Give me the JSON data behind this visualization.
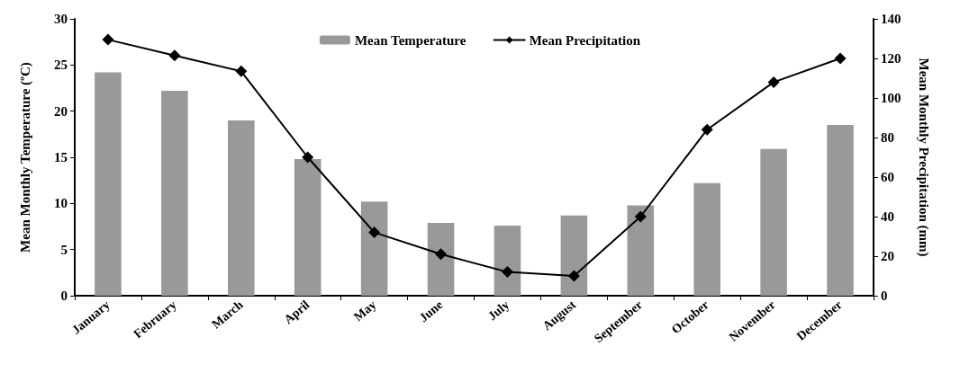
{
  "chart_data": {
    "type": "bar",
    "categories": [
      "January",
      "February",
      "March",
      "April",
      "May",
      "June",
      "July",
      "August",
      "September",
      "October",
      "November",
      "December"
    ],
    "ylabel": "Mean Monthly Temperature (ºC)",
    "y2label": "Mean Monthly Precipitation (mm)",
    "ylim": [
      0,
      30
    ],
    "yticks": [
      0,
      5,
      10,
      15,
      20,
      25,
      30
    ],
    "y2lim": [
      0,
      140
    ],
    "y2ticks": [
      0,
      20,
      40,
      60,
      80,
      100,
      120,
      140
    ],
    "legend": "top",
    "grid": false,
    "series": [
      {
        "name": "Mean Temperature",
        "color": "#999999",
        "values": [
          24.2,
          22.2,
          19.0,
          14.8,
          10.2,
          7.9,
          7.6,
          8.7,
          9.8,
          12.2,
          15.9,
          18.5
        ]
      },
      {
        "name": "Mean Precipitation",
        "type": "line",
        "axis": "y2",
        "color": "#000000",
        "marker": "diamond",
        "line_style": "solid",
        "values": [
          129.5,
          121.5,
          113.5,
          70,
          32,
          21,
          12,
          10,
          40,
          84,
          108,
          120
        ]
      }
    ]
  }
}
